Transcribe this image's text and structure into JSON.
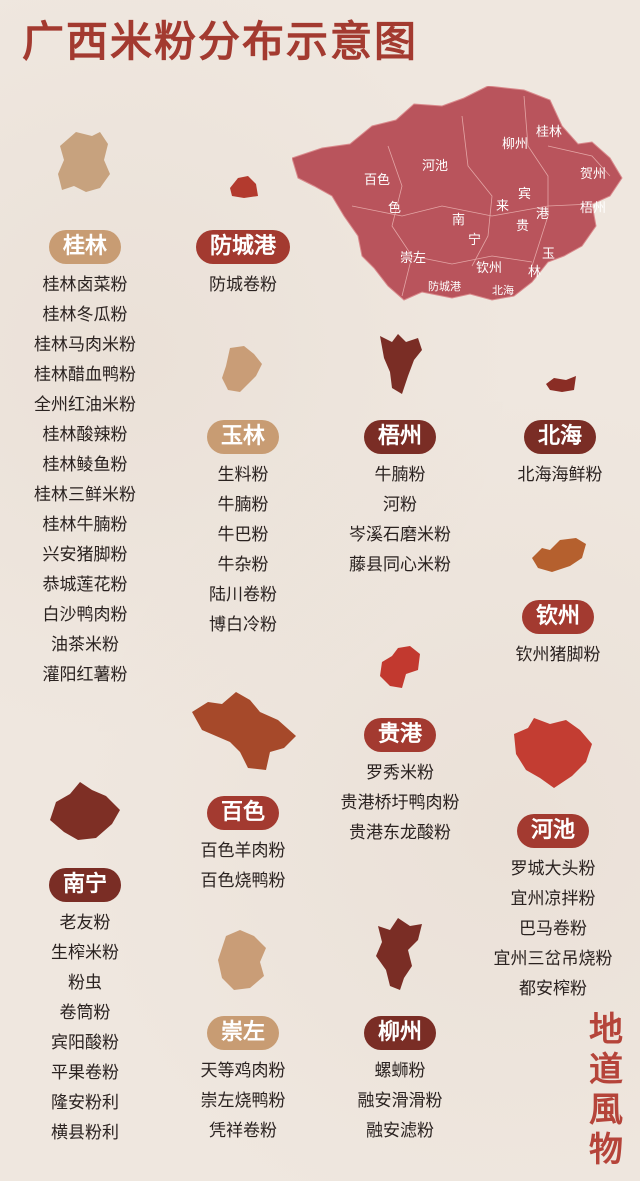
{
  "title": "广西米粉分布示意图",
  "watermark": [
    "地",
    "道",
    "風",
    "物"
  ],
  "colors": {
    "title": "#a33a30",
    "badge_tan": "#c89c73",
    "badge_red": "#a33a30",
    "badge_brown": "#7a2d25",
    "map_fill": "#b9545c"
  },
  "map_labels": [
    "桂林",
    "柳州",
    "河池",
    "贺州",
    "百色",
    "宾",
    "梧州",
    "色",
    "来",
    "港",
    "南",
    "贵",
    "宁",
    "崇左",
    "玉",
    "钦州",
    "林",
    "防城港",
    "北海"
  ],
  "regions": [
    {
      "name": "桂林",
      "items": [
        "桂林卤菜粉",
        "桂林冬瓜粉",
        "桂林马肉米粉",
        "桂林醋血鸭粉",
        "全州红油米粉",
        "桂林酸辣粉",
        "桂林鲮鱼粉",
        "桂林三鲜米粉",
        "桂林牛腩粉",
        "兴安猪脚粉",
        "恭城莲花粉",
        "白沙鸭肉粉",
        "油茶米粉",
        "灌阳红薯粉"
      ]
    },
    {
      "name": "防城港",
      "items": [
        "防城卷粉"
      ]
    },
    {
      "name": "玉林",
      "items": [
        "生料粉",
        "牛腩粉",
        "牛巴粉",
        "牛杂粉",
        "陆川卷粉",
        "博白冷粉"
      ]
    },
    {
      "name": "梧州",
      "items": [
        "牛腩粉",
        "河粉",
        "岑溪石磨米粉",
        "藤县同心米粉"
      ]
    },
    {
      "name": "北海",
      "items": [
        "北海海鲜粉"
      ]
    },
    {
      "name": "钦州",
      "items": [
        "钦州猪脚粉"
      ]
    },
    {
      "name": "贵港",
      "items": [
        "罗秀米粉",
        "贵港桥圩鸭肉粉",
        "贵港东龙酸粉"
      ]
    },
    {
      "name": "百色",
      "items": [
        "百色羊肉粉",
        "百色烧鸭粉"
      ]
    },
    {
      "name": "河池",
      "items": [
        "罗城大头粉",
        "宜州凉拌粉",
        "巴马卷粉",
        "宜州三岔吊烧粉",
        "都安榨粉"
      ]
    },
    {
      "name": "南宁",
      "items": [
        "老友粉",
        "生榨米粉",
        "粉虫",
        "卷筒粉",
        "宾阳酸粉",
        "平果卷粉",
        "隆安粉利",
        "横县粉利"
      ]
    },
    {
      "name": "崇左",
      "items": [
        "天等鸡肉粉",
        "崇左烧鸭粉",
        "凭祥卷粉"
      ]
    },
    {
      "name": "柳州",
      "items": [
        "螺蛳粉",
        "融安滑滑粉",
        "融安滤粉"
      ]
    }
  ]
}
